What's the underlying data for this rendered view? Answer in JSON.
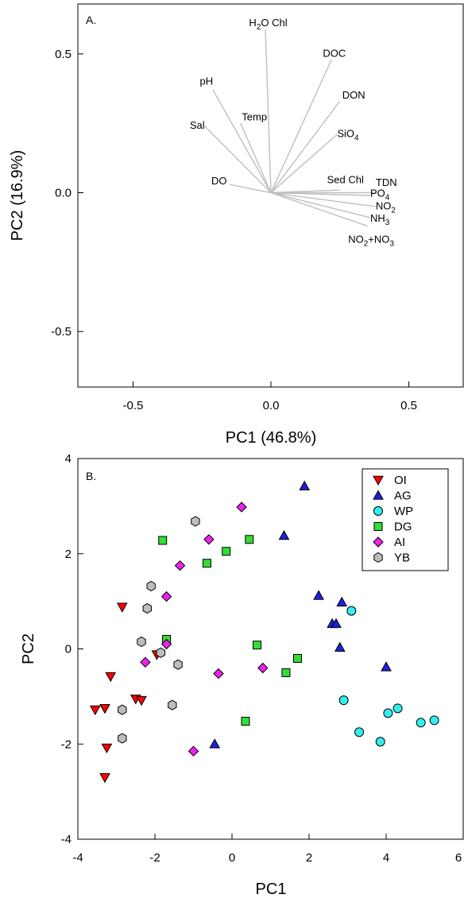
{
  "chart_data": [
    {
      "type": "biplot",
      "panel_label": "A.",
      "xlabel": "PC1 (46.8%)",
      "ylabel": "PC2 (16.9%)",
      "xlim": [
        -0.7,
        0.7
      ],
      "ylim": [
        -0.7,
        0.68
      ],
      "xticks": [
        -0.5,
        0.0,
        0.5
      ],
      "yticks": [
        -0.5,
        0.0,
        0.5
      ],
      "xtick_labels": [
        "-0.5",
        "0.0",
        "0.5"
      ],
      "ytick_labels": [
        "-0.5",
        "0.0",
        "0.5"
      ],
      "line_color": "#bfbfbf",
      "loadings": [
        {
          "label": "H2O Chl",
          "base": "H",
          "sub": "2",
          "tail": "O Chl",
          "x": -0.02,
          "y": 0.59,
          "anchor": "middle",
          "lx": -0.01,
          "ly": 0.6
        },
        {
          "label": "DOC",
          "x": 0.22,
          "y": 0.48,
          "anchor": "middle",
          "lx": 0.23,
          "ly": 0.49
        },
        {
          "label": "DON",
          "x": 0.25,
          "y": 0.33,
          "anchor": "middle",
          "lx": 0.3,
          "ly": 0.34
        },
        {
          "label": "pH",
          "x": -0.21,
          "y": 0.37,
          "anchor": "end",
          "lx": -0.21,
          "ly": 0.39
        },
        {
          "label": "Temp",
          "x": -0.11,
          "y": 0.25,
          "anchor": "middle",
          "lx": -0.06,
          "ly": 0.26
        },
        {
          "label": "Sal",
          "x": -0.24,
          "y": 0.24,
          "anchor": "end",
          "lx": -0.24,
          "ly": 0.23
        },
        {
          "label": "SiO4",
          "base": "SiO",
          "sub": "4",
          "tail": "",
          "x": 0.24,
          "y": 0.21,
          "anchor": "start",
          "lx": 0.24,
          "ly": 0.2
        },
        {
          "label": "DO",
          "x": -0.15,
          "y": 0.03,
          "anchor": "end",
          "lx": -0.16,
          "ly": 0.03
        },
        {
          "label": "Sed Chl",
          "x": 0.25,
          "y": 0.01,
          "anchor": "middle",
          "lx": 0.27,
          "ly": 0.035
        },
        {
          "label": "TDN",
          "x": 0.38,
          "y": 0.0,
          "anchor": "start",
          "lx": 0.38,
          "ly": 0.025
        },
        {
          "label": "PO4",
          "base": "PO",
          "sub": "4",
          "tail": "",
          "x": 0.36,
          "y": -0.01,
          "anchor": "start",
          "lx": 0.36,
          "ly": -0.015
        },
        {
          "label": "NO2",
          "base": "NO",
          "sub": "2",
          "tail": "",
          "x": 0.38,
          "y": -0.05,
          "anchor": "start",
          "lx": 0.38,
          "ly": -0.06
        },
        {
          "label": "NH3",
          "base": "NH",
          "sub": "3",
          "tail": "",
          "x": 0.36,
          "y": -0.09,
          "anchor": "start",
          "lx": 0.36,
          "ly": -0.105
        },
        {
          "label": "NO2+NO3",
          "base": "NO",
          "sub": "2",
          "tail": "+NO",
          "sub2": "3",
          "x": 0.35,
          "y": -0.12,
          "anchor": "start",
          "lx": 0.28,
          "ly": -0.18
        }
      ]
    },
    {
      "type": "scatter",
      "panel_label": "B.",
      "xlabel": "PC1",
      "ylabel": "PC2",
      "xlim": [
        -4,
        6
      ],
      "ylim": [
        -4,
        4
      ],
      "xticks": [
        -4,
        -2,
        0,
        2,
        4,
        6
      ],
      "yticks": [
        -4,
        -2,
        0,
        2,
        4
      ],
      "xtick_labels": [
        "-4",
        "-2",
        "0",
        "2",
        "4",
        "6"
      ],
      "ytick_labels": [
        "-4",
        "-2",
        "0",
        "2",
        "4"
      ],
      "legend": "top-right",
      "series": [
        {
          "name": "OI",
          "marker": "triangle-down",
          "color": "#ff0000",
          "points": [
            [
              -2.85,
              0.88
            ],
            [
              -3.15,
              -0.58
            ],
            [
              -1.95,
              -0.12
            ],
            [
              -2.5,
              -1.05
            ],
            [
              -2.35,
              -1.08
            ],
            [
              -3.55,
              -1.28
            ],
            [
              -3.3,
              -1.25
            ],
            [
              -3.25,
              -2.08
            ],
            [
              -3.3,
              -2.7
            ]
          ]
        },
        {
          "name": "AG",
          "marker": "triangle-up",
          "color": "#1f1fdd",
          "points": [
            [
              1.88,
              3.42
            ],
            [
              1.35,
              2.38
            ],
            [
              2.25,
              1.12
            ],
            [
              2.6,
              0.53
            ],
            [
              2.7,
              0.53
            ],
            [
              2.85,
              0.98
            ],
            [
              2.8,
              0.03
            ],
            [
              4.0,
              -0.38
            ],
            [
              -0.45,
              -2.0
            ]
          ]
        },
        {
          "name": "WP",
          "marker": "circle",
          "color": "#33eeee",
          "points": [
            [
              3.1,
              0.8
            ],
            [
              2.9,
              -1.08
            ],
            [
              3.3,
              -1.75
            ],
            [
              3.85,
              -1.95
            ],
            [
              4.05,
              -1.35
            ],
            [
              4.3,
              -1.25
            ],
            [
              4.9,
              -1.55
            ],
            [
              5.25,
              -1.5
            ]
          ]
        },
        {
          "name": "DG",
          "marker": "square",
          "color": "#33dd33",
          "points": [
            [
              -1.8,
              2.28
            ],
            [
              -0.15,
              2.05
            ],
            [
              -0.65,
              1.8
            ],
            [
              0.45,
              2.3
            ],
            [
              -1.7,
              0.2
            ],
            [
              0.65,
              0.08
            ],
            [
              1.7,
              -0.2
            ],
            [
              1.4,
              -0.5
            ],
            [
              0.35,
              -1.52
            ]
          ]
        },
        {
          "name": "AI",
          "marker": "diamond",
          "color": "#ee22ee",
          "points": [
            [
              0.25,
              2.98
            ],
            [
              -0.6,
              2.3
            ],
            [
              -1.35,
              1.75
            ],
            [
              -1.7,
              1.1
            ],
            [
              -1.7,
              0.1
            ],
            [
              -2.25,
              -0.28
            ],
            [
              -0.35,
              -0.52
            ],
            [
              0.8,
              -0.4
            ],
            [
              -1.0,
              -2.15
            ]
          ]
        },
        {
          "name": "YB",
          "marker": "hexagon",
          "color": "#bdbdbd",
          "points": [
            [
              -0.95,
              2.68
            ],
            [
              -2.1,
              1.32
            ],
            [
              -2.2,
              0.85
            ],
            [
              -2.35,
              0.15
            ],
            [
              -1.85,
              -0.08
            ],
            [
              -1.4,
              -0.33
            ],
            [
              -1.55,
              -1.18
            ],
            [
              -2.85,
              -1.28
            ],
            [
              -2.85,
              -1.88
            ]
          ]
        }
      ]
    }
  ]
}
